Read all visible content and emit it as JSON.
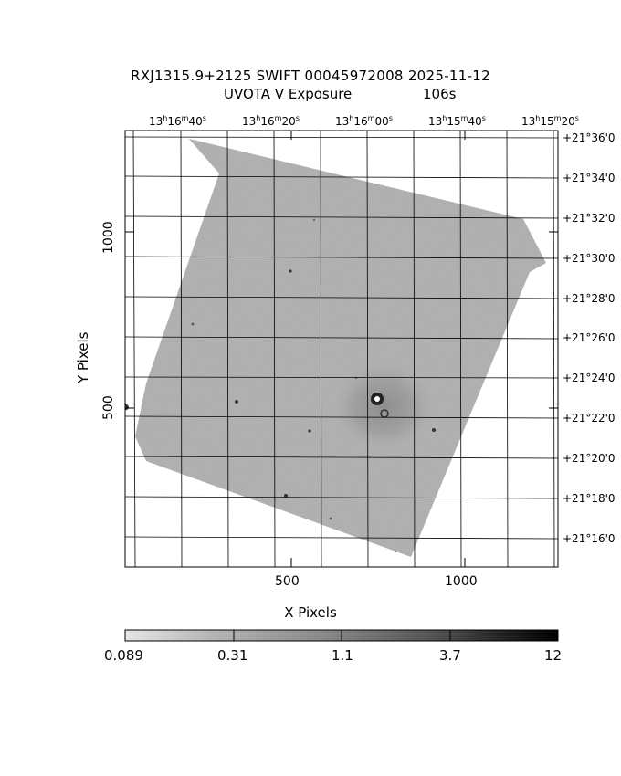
{
  "title_line1": "RXJ1315.9+2125 SWIFT 00045972008 2025-11-12",
  "title_line2_left": "UVOTA V Exposure",
  "title_line2_right": "106s",
  "ra_labels": [
    {
      "h": "13",
      "m": "16",
      "s": "40"
    },
    {
      "h": "13",
      "m": "16",
      "s": "20"
    },
    {
      "h": "13",
      "m": "16",
      "s": "00"
    },
    {
      "h": "13",
      "m": "15",
      "s": "40"
    },
    {
      "h": "13",
      "m": "15",
      "s": "20"
    }
  ],
  "ra_units": {
    "h": "h",
    "m": "m",
    "s": "s"
  },
  "dec_labels": [
    "+21°36'0",
    "+21°34'0",
    "+21°32'0",
    "+21°30'0",
    "+21°28'0",
    "+21°26'0",
    "+21°24'0",
    "+21°22'0",
    "+21°20'0",
    "+21°18'0",
    "+21°16'0"
  ],
  "x_axis": {
    "label": "X Pixels",
    "ticks": [
      "500",
      "1000"
    ]
  },
  "y_axis": {
    "label": "Y Pixels",
    "ticks": [
      "1000",
      "500"
    ]
  },
  "colorbar": {
    "ticks": [
      "0.089",
      "0.31",
      "1.1",
      "3.7",
      "12"
    ]
  },
  "colors": {
    "background": "#ffffff",
    "image_field": "#a9a9a9",
    "axes": "#000000"
  }
}
